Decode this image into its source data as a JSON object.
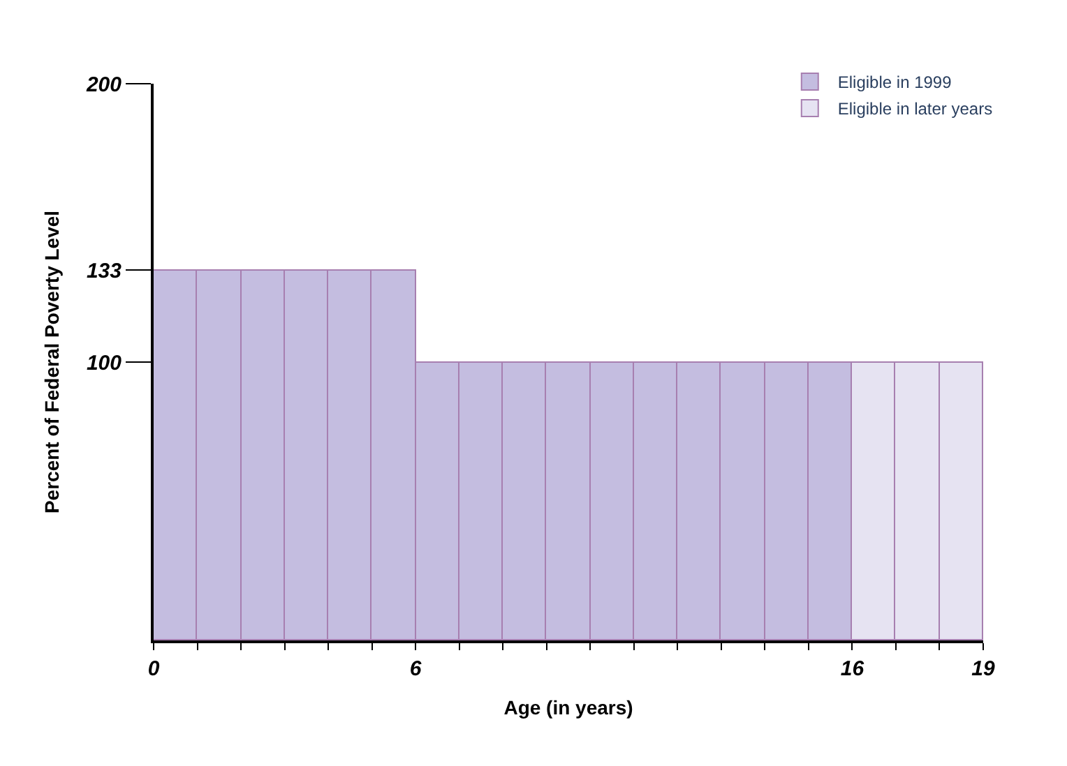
{
  "chart_data": {
    "type": "bar",
    "xlabel": "Age (in years)",
    "ylabel": "Percent of Federal Poverty Level",
    "series": [
      {
        "name": "Eligible in 1999",
        "color": "#c4bde0",
        "x": [
          0.5,
          1.5,
          2.5,
          3.5,
          4.5,
          5.5,
          6.5,
          7.5,
          8.5,
          9.5,
          10.5,
          11.5,
          12.5,
          13.5,
          14.5,
          15.5
        ],
        "values": [
          133,
          133,
          133,
          133,
          133,
          133,
          100,
          100,
          100,
          100,
          100,
          100,
          100,
          100,
          100,
          100
        ]
      },
      {
        "name": "Eligible in later years",
        "color": "#e6e3f2",
        "x": [
          16.5,
          17.5,
          18.5
        ],
        "values": [
          100,
          100,
          100
        ]
      }
    ],
    "xlim": [
      0,
      19
    ],
    "xticks": [
      0,
      {
        "value": 1,
        "label": null
      },
      {
        "value": 2,
        "label": null
      },
      {
        "value": 3,
        "label": null
      },
      {
        "value": 4,
        "label": null
      },
      {
        "value": 5,
        "label": null
      },
      6,
      {
        "value": 7,
        "label": null
      },
      {
        "value": 8,
        "label": null
      },
      {
        "value": 9,
        "label": null
      },
      {
        "value": 10,
        "label": null
      },
      {
        "value": 11,
        "label": null
      },
      {
        "value": 12,
        "label": null
      },
      {
        "value": 13,
        "label": null
      },
      {
        "value": 14,
        "label": null
      },
      {
        "value": 15,
        "label": null
      },
      16,
      {
        "value": 17,
        "label": null
      },
      {
        "value": 18,
        "label": null
      },
      19
    ],
    "ylim": [
      0,
      200
    ],
    "yticks": [
      100,
      133,
      200
    ],
    "legend": "top right"
  }
}
